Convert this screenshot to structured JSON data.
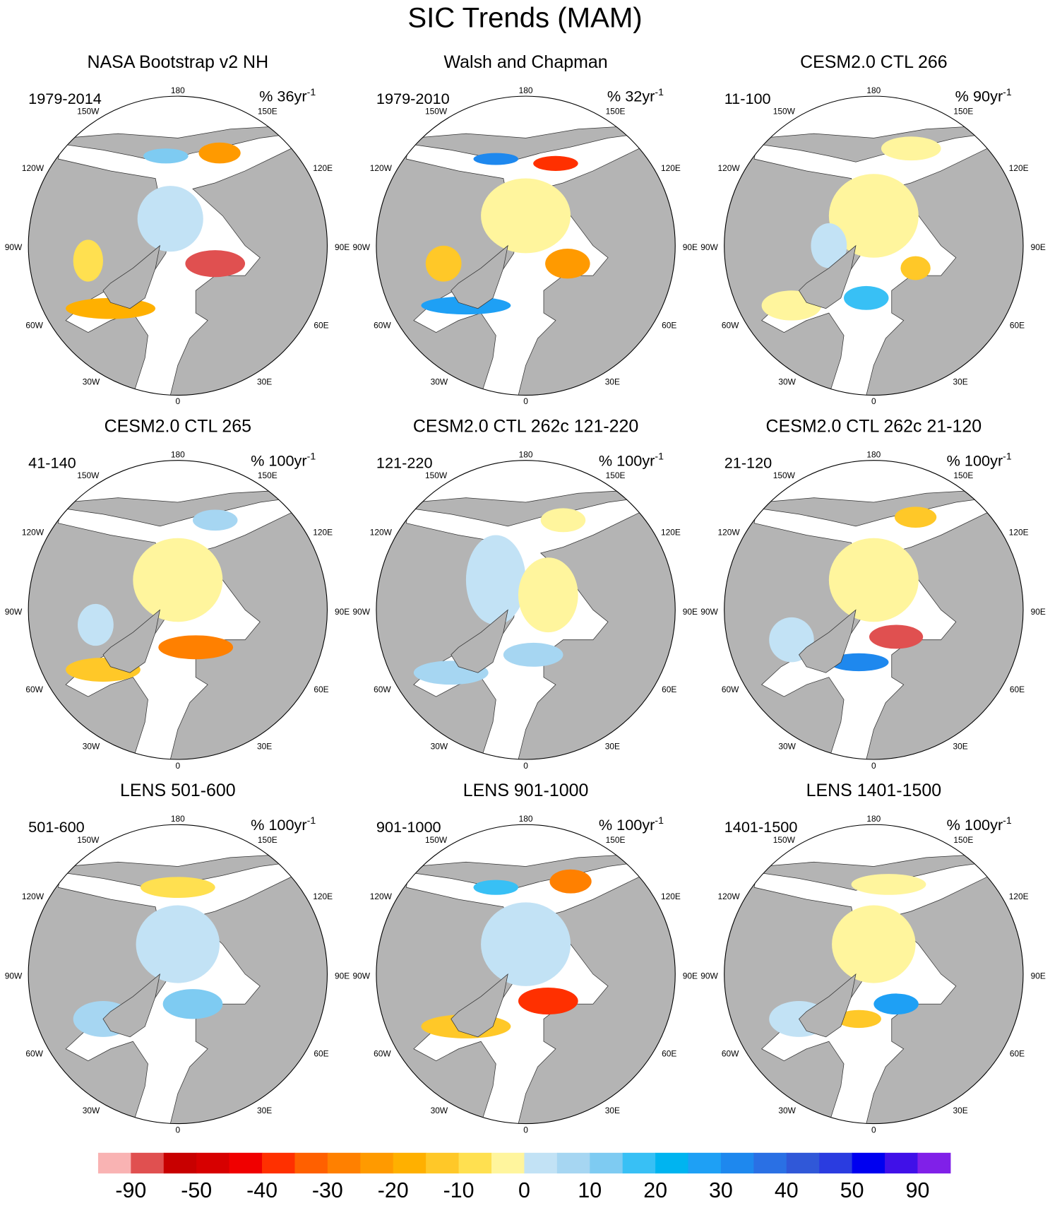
{
  "title": "SIC Trends (MAM)",
  "panels": [
    {
      "title": "NASA Bootstrap v2 NH",
      "period": "1979-2014",
      "units": "% 36yr",
      "units_exp": "-1"
    },
    {
      "title": "Walsh and Chapman",
      "period": "1979-2010",
      "units": "% 32yr",
      "units_exp": "-1"
    },
    {
      "title": "CESM2.0 CTL 266",
      "period": "11-100",
      "units": "% 90yr",
      "units_exp": "-1"
    },
    {
      "title": "CESM2.0 CTL 265",
      "period": "41-140",
      "units": "% 100yr",
      "units_exp": "-1"
    },
    {
      "title": "CESM2.0 CTL 262c 121-220",
      "period": "121-220",
      "units": "% 100yr",
      "units_exp": "-1"
    },
    {
      "title": "CESM2.0 CTL 262c 21-120",
      "period": "21-120",
      "units": "% 100yr",
      "units_exp": "-1"
    },
    {
      "title": "LENS 501-600",
      "period": "501-600",
      "units": "% 100yr",
      "units_exp": "-1"
    },
    {
      "title": "LENS 901-1000",
      "period": "901-1000",
      "units": "% 100yr",
      "units_exp": "-1"
    },
    {
      "title": "LENS 1401-1500",
      "period": "1401-1500",
      "units": "% 100yr",
      "units_exp": "-1"
    }
  ],
  "longitude_labels": [
    "180",
    "150W",
    "150E",
    "120W",
    "120E",
    "90W",
    "90E",
    "60W",
    "60E",
    "30W",
    "30E",
    "0"
  ],
  "colorbar": {
    "colors": [
      "#f9b3b3",
      "#e05050",
      "#c80000",
      "#d70000",
      "#f00000",
      "#ff3000",
      "#ff6000",
      "#ff8000",
      "#ff9a00",
      "#ffb000",
      "#ffc828",
      "#ffe050",
      "#fff59d",
      "#c2e2f5",
      "#a6d6f2",
      "#7ecbf2",
      "#38c0f5",
      "#00b4f0",
      "#1ea0f5",
      "#1e88ee",
      "#2a70e4",
      "#3058d8",
      "#2a3ce0",
      "#0000f0",
      "#4010e8",
      "#8020e8"
    ],
    "labels": [
      -90,
      -50,
      -40,
      -30,
      -20,
      -10,
      0,
      10,
      20,
      30,
      40,
      50,
      90
    ]
  }
}
